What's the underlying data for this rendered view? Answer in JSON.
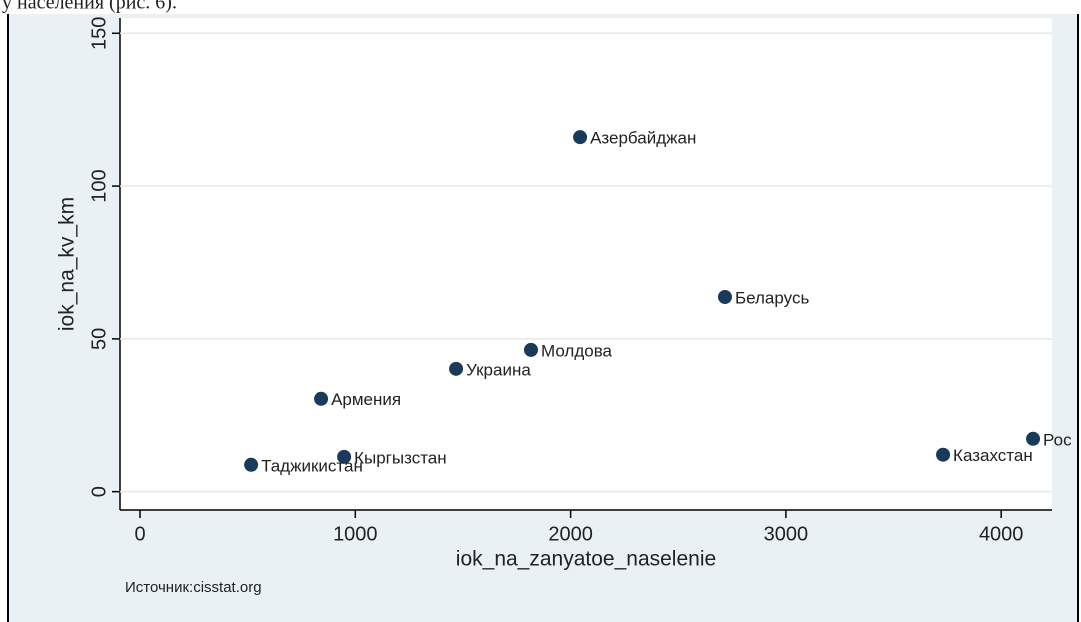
{
  "caption_fragment": "у населения (рис. 6).",
  "chart_data": {
    "type": "scatter",
    "xlabel": "iok_na_zanyatoe_naselenie",
    "ylabel": "iok_na_kv_km",
    "note": "Источник:cisstat.org",
    "point_labels": [
      "Азербайджан",
      "Беларусь",
      "Молдова",
      "Украина",
      "Армения",
      "Кыргызстан",
      "Таджикистан",
      "Казахстан",
      "Рос"
    ],
    "x": [
      2044,
      2717,
      1816,
      1468,
      841,
      948,
      516,
      3730,
      4148
    ],
    "values": [
      116,
      63.7,
      46.4,
      40.2,
      30.4,
      11.4,
      8.8,
      12.1,
      17.3
    ],
    "color": "#1a3a5c",
    "xlim": [
      -93,
      4236
    ],
    "xticks": [
      0,
      1000,
      2000,
      3000,
      4000
    ],
    "ylim": [
      -6,
      155
    ],
    "yticks": [
      0,
      50,
      100,
      150
    ],
    "grid": true
  }
}
